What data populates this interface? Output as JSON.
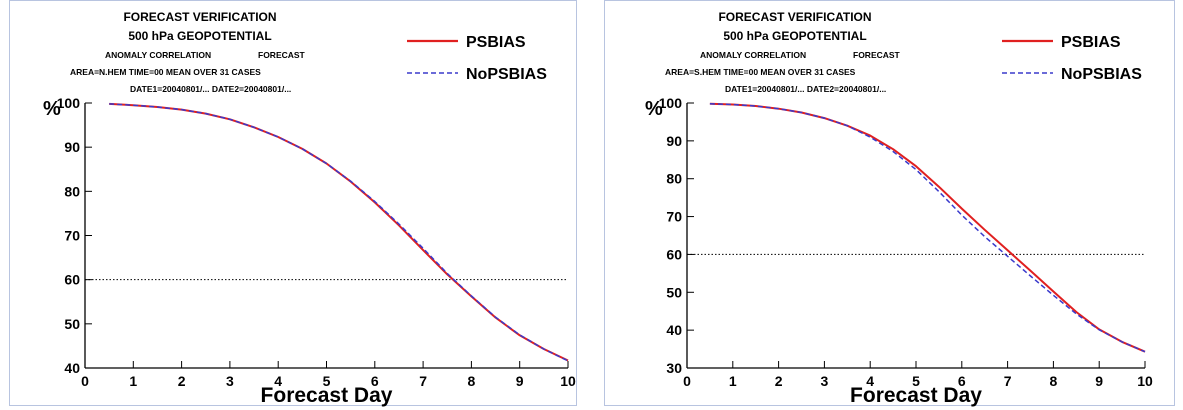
{
  "chart_data": [
    {
      "type": "line",
      "header": {
        "line1": "FORECAST VERIFICATION",
        "line2": "500 hPa GEOPOTENTIAL",
        "line3a": "ANOMALY CORRELATION",
        "line3b": "FORECAST",
        "line4": "AREA=N.HEM   TIME=00   MEAN OVER  31 CASES",
        "line5": "DATE1=20040801/...  DATE2=20040801/..."
      },
      "footer": "",
      "xlabel": "Forecast Day",
      "ylabel": "%",
      "xlim": [
        0,
        10
      ],
      "ylim": [
        40,
        100
      ],
      "xticks": [
        "0",
        "1",
        "2",
        "3",
        "4",
        "5",
        "6",
        "7",
        "8",
        "9",
        "10"
      ],
      "yticks": [
        "40",
        "50",
        "60",
        "70",
        "80",
        "90",
        "100"
      ],
      "reference_line": 60,
      "legend_position": "top-right",
      "x": [
        0.5,
        1,
        1.5,
        2,
        2.5,
        3,
        3.5,
        4,
        4.5,
        5,
        5.5,
        6,
        6.5,
        7,
        7.5,
        8,
        8.5,
        9,
        9.5,
        10
      ],
      "series": [
        {
          "name": "PSBIAS",
          "color": "#e02020",
          "dash": "solid",
          "values": [
            99.8,
            99.5,
            99.1,
            98.5,
            97.6,
            96.3,
            94.5,
            92.3,
            89.6,
            86.3,
            82.2,
            77.5,
            72.3,
            66.7,
            61.2,
            56.2,
            51.4,
            47.4,
            44.3,
            41.7
          ]
        },
        {
          "name": "NoPSBIAS",
          "color": "#3a3acc",
          "dash": "dashed",
          "values": [
            99.8,
            99.5,
            99.1,
            98.5,
            97.6,
            96.3,
            94.5,
            92.3,
            89.6,
            86.3,
            82.3,
            77.7,
            72.6,
            67.1,
            61.4,
            56.3,
            51.5,
            47.5,
            44.3,
            41.6
          ]
        }
      ]
    },
    {
      "type": "line",
      "header": {
        "line1": "FORECAST VERIFICATION",
        "line2": "500 hPa GEOPOTENTIAL",
        "line3a": "ANOMALY CORRELATION",
        "line3b": "FORECAST",
        "line4": "AREA=S.HEM   TIME=00   MEAN OVER  31 CASES",
        "line5": "DATE1=20040801/...  DATE2=20040801/..."
      },
      "footer": "",
      "xlabel": "Forecast Day",
      "ylabel": "%",
      "xlim": [
        0,
        10
      ],
      "ylim": [
        30,
        100
      ],
      "xticks": [
        "0",
        "1",
        "2",
        "3",
        "4",
        "5",
        "6",
        "7",
        "8",
        "9",
        "10"
      ],
      "yticks": [
        "30",
        "40",
        "50",
        "60",
        "70",
        "80",
        "90",
        "100"
      ],
      "reference_line": 60,
      "legend_position": "top-right",
      "x": [
        0.5,
        1,
        1.5,
        2,
        2.5,
        3,
        3.5,
        4,
        4.5,
        5,
        5.5,
        6,
        6.5,
        7,
        7.5,
        8,
        8.5,
        9,
        9.5,
        10
      ],
      "series": [
        {
          "name": "PSBIAS",
          "color": "#e02020",
          "dash": "solid",
          "values": [
            99.8,
            99.6,
            99.2,
            98.5,
            97.5,
            96.0,
            94.0,
            91.4,
            87.8,
            83.3,
            77.9,
            72.1,
            66.5,
            61.1,
            55.7,
            50.2,
            44.8,
            40.2,
            36.9,
            34.3
          ]
        },
        {
          "name": "NoPSBIAS",
          "color": "#3a3acc",
          "dash": "dashed",
          "values": [
            99.8,
            99.6,
            99.2,
            98.5,
            97.5,
            96.0,
            94.0,
            91.0,
            87.2,
            82.4,
            76.6,
            70.4,
            64.7,
            59.5,
            54.3,
            49.2,
            44.3,
            40.1,
            36.9,
            34.3
          ]
        }
      ]
    }
  ]
}
